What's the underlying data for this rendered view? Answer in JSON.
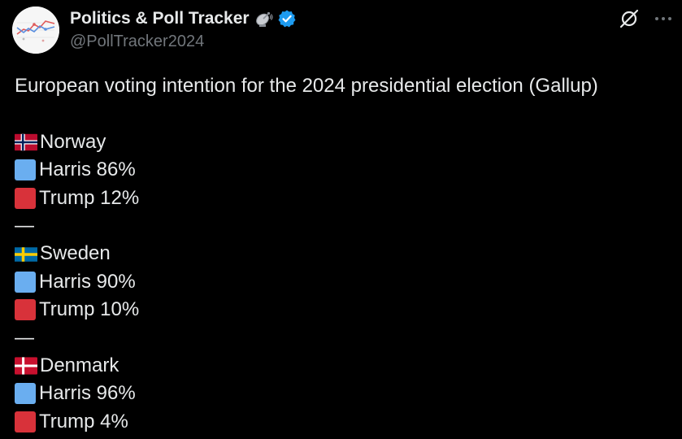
{
  "author": {
    "display_name": "Politics & Poll Tracker",
    "handle": "@PollTracker2024",
    "badge_icon": "satellite-antenna-icon",
    "verified_icon": "verified-badge-icon",
    "verified_color": "#1d9bf0"
  },
  "actions": {
    "grok_icon": "grok-icon",
    "more_icon": "more-options-icon"
  },
  "post": {
    "title": "European voting intention for the 2024 presidential election (Gallup)",
    "separator": "—",
    "colors": {
      "harris": "#6aaef0",
      "trump": "#d8323a"
    },
    "countries": [
      {
        "flag_icon": "norway-flag-icon",
        "name": "Norway",
        "harris_line": "Harris 86%",
        "trump_line": "Trump 12%",
        "harris_pct": 86,
        "trump_pct": 12
      },
      {
        "flag_icon": "sweden-flag-icon",
        "name": "Sweden",
        "harris_line": "Harris 90%",
        "trump_line": "Trump 10%",
        "harris_pct": 90,
        "trump_pct": 10
      },
      {
        "flag_icon": "denmark-flag-icon",
        "name": "Denmark",
        "harris_line": "Harris 96%",
        "trump_line": "Trump 4%",
        "harris_pct": 96,
        "trump_pct": 4
      }
    ]
  }
}
